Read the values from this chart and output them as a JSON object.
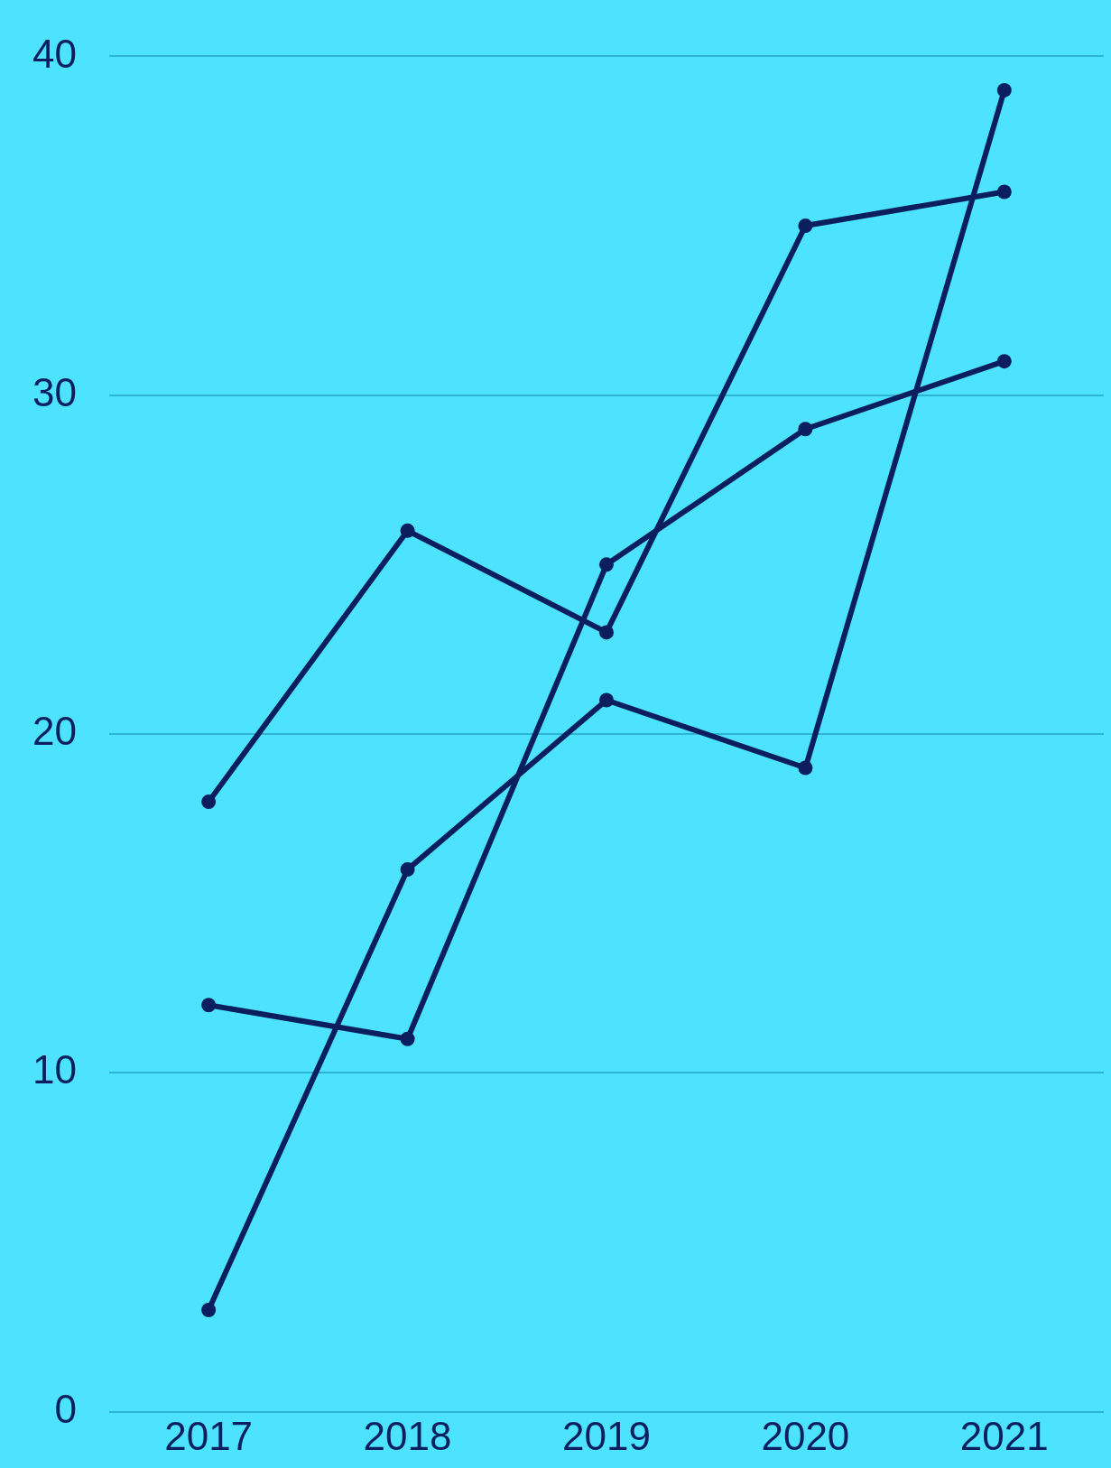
{
  "chart_data": {
    "type": "line",
    "categories": [
      "2017",
      "2018",
      "2019",
      "2020",
      "2021"
    ],
    "series": [
      {
        "color": "#0b1f5e",
        "values": [
          18,
          26,
          23,
          35,
          36
        ]
      },
      {
        "color": "#0b1f5e",
        "values": [
          12,
          11,
          25,
          29,
          31
        ]
      },
      {
        "color": "#0b1f5e",
        "values": [
          3,
          16,
          21,
          19,
          39
        ]
      }
    ],
    "ylim": [
      0,
      40
    ],
    "yticks": [
      0,
      10,
      20,
      30,
      40
    ],
    "grid": "y",
    "legend": false,
    "marker": "circle",
    "line_style": "solid"
  }
}
